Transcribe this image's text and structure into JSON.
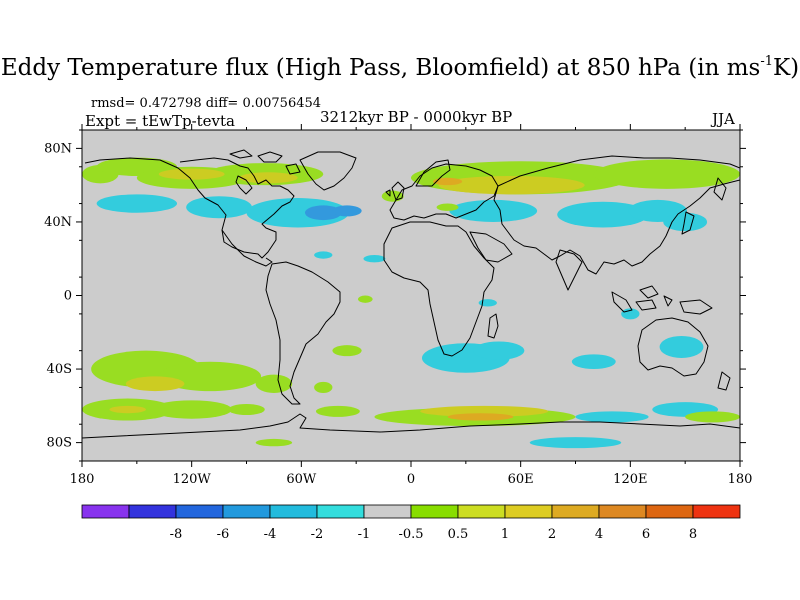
{
  "header": {
    "title_main": "Eddy Temperature flux (High Pass, Bloomfield) at 850 hPa (in ms",
    "title_sup": "-1",
    "title_end": "K)",
    "stats": "rmsd= 0.472798 diff= 0.00756454",
    "experiment": "Expt = tEwTp-tevta",
    "period": "3212kyr BP - 0000kyr BP",
    "season": "JJA"
  },
  "map": {
    "projection": "cylindrical-equidistant",
    "lon_range": [
      -180,
      180
    ],
    "lat_range": [
      -90,
      90
    ],
    "lat_ticks": [
      {
        "value": 80,
        "label": "80N"
      },
      {
        "value": 40,
        "label": "40N"
      },
      {
        "value": 0,
        "label": "0"
      },
      {
        "value": -40,
        "label": "40S"
      },
      {
        "value": -80,
        "label": "80S"
      }
    ],
    "lon_ticks": [
      {
        "value": -180,
        "label": "180"
      },
      {
        "value": -120,
        "label": "120W"
      },
      {
        "value": -60,
        "label": "60W"
      },
      {
        "value": 0,
        "label": "0"
      },
      {
        "value": 60,
        "label": "60E"
      },
      {
        "value": 120,
        "label": "120E"
      },
      {
        "value": 180,
        "label": "180"
      }
    ],
    "background_color": "#cccccc",
    "coastline_color": "#000000",
    "anomalies": [
      {
        "lon": -170,
        "lat": 66,
        "rx": 10,
        "ry": 5,
        "color": "#99dd22"
      },
      {
        "lon": -150,
        "lat": 70,
        "rx": 22,
        "ry": 5,
        "color": "#99dd22"
      },
      {
        "lon": -120,
        "lat": 64,
        "rx": 30,
        "ry": 6,
        "color": "#99dd22"
      },
      {
        "lon": -80,
        "lat": 66,
        "rx": 32,
        "ry": 6,
        "color": "#99dd22"
      },
      {
        "lon": -120,
        "lat": 66,
        "rx": 18,
        "ry": 3,
        "color": "#cccc22"
      },
      {
        "lon": -78,
        "lat": 64,
        "rx": 16,
        "ry": 3,
        "color": "#cccc22"
      },
      {
        "lon": -150,
        "lat": 50,
        "rx": 22,
        "ry": 5,
        "color": "#33ccdd"
      },
      {
        "lon": -105,
        "lat": 48,
        "rx": 18,
        "ry": 6,
        "color": "#33ccdd"
      },
      {
        "lon": -62,
        "lat": 45,
        "rx": 28,
        "ry": 8,
        "color": "#33ccdd"
      },
      {
        "lon": -48,
        "lat": 45,
        "rx": 10,
        "ry": 4,
        "color": "#3399dd"
      },
      {
        "lon": -35,
        "lat": 46,
        "rx": 8,
        "ry": 3,
        "color": "#3399dd"
      },
      {
        "lon": -10,
        "lat": 54,
        "rx": 6,
        "ry": 3,
        "color": "#99dd22"
      },
      {
        "lon": -48,
        "lat": 22,
        "rx": 5,
        "ry": 2,
        "color": "#33ccdd"
      },
      {
        "lon": -20,
        "lat": 20,
        "rx": 6,
        "ry": 2,
        "color": "#33ccdd"
      },
      {
        "lon": 60,
        "lat": 64,
        "rx": 60,
        "ry": 9,
        "color": "#99dd22"
      },
      {
        "lon": 140,
        "lat": 66,
        "rx": 40,
        "ry": 8,
        "color": "#99dd22"
      },
      {
        "lon": 55,
        "lat": 60,
        "rx": 40,
        "ry": 5,
        "color": "#cccc22"
      },
      {
        "lon": 20,
        "lat": 62,
        "rx": 8,
        "ry": 2,
        "color": "#ddaa22"
      },
      {
        "lon": 45,
        "lat": 46,
        "rx": 24,
        "ry": 6,
        "color": "#33ccdd"
      },
      {
        "lon": 105,
        "lat": 44,
        "rx": 25,
        "ry": 7,
        "color": "#33ccdd"
      },
      {
        "lon": 135,
        "lat": 46,
        "rx": 16,
        "ry": 6,
        "color": "#33ccdd"
      },
      {
        "lon": 150,
        "lat": 40,
        "rx": 12,
        "ry": 5,
        "color": "#33ccdd"
      },
      {
        "lon": 20,
        "lat": 48,
        "rx": 6,
        "ry": 2,
        "color": "#99dd22"
      },
      {
        "lon": -25,
        "lat": -2,
        "rx": 4,
        "ry": 2,
        "color": "#99dd22"
      },
      {
        "lon": 42,
        "lat": -4,
        "rx": 5,
        "ry": 2,
        "color": "#33ccdd"
      },
      {
        "lon": 120,
        "lat": -10,
        "rx": 5,
        "ry": 3,
        "color": "#33ccdd"
      },
      {
        "lon": -145,
        "lat": -40,
        "rx": 30,
        "ry": 10,
        "color": "#99dd22"
      },
      {
        "lon": -110,
        "lat": -44,
        "rx": 28,
        "ry": 8,
        "color": "#99dd22"
      },
      {
        "lon": -140,
        "lat": -48,
        "rx": 16,
        "ry": 4,
        "color": "#cccc22"
      },
      {
        "lon": -75,
        "lat": -48,
        "rx": 10,
        "ry": 5,
        "color": "#99dd22"
      },
      {
        "lon": -155,
        "lat": -62,
        "rx": 25,
        "ry": 6,
        "color": "#99dd22"
      },
      {
        "lon": -120,
        "lat": -62,
        "rx": 22,
        "ry": 5,
        "color": "#99dd22"
      },
      {
        "lon": -155,
        "lat": -62,
        "rx": 10,
        "ry": 2,
        "color": "#cccc22"
      },
      {
        "lon": -90,
        "lat": -62,
        "rx": 10,
        "ry": 3,
        "color": "#99dd22"
      },
      {
        "lon": -48,
        "lat": -50,
        "rx": 5,
        "ry": 3,
        "color": "#99dd22"
      },
      {
        "lon": -35,
        "lat": -30,
        "rx": 8,
        "ry": 3,
        "color": "#99dd22"
      },
      {
        "lon": 30,
        "lat": -34,
        "rx": 24,
        "ry": 8,
        "color": "#33ccdd"
      },
      {
        "lon": 48,
        "lat": -30,
        "rx": 14,
        "ry": 5,
        "color": "#33ccdd"
      },
      {
        "lon": 100,
        "lat": -36,
        "rx": 12,
        "ry": 4,
        "color": "#33ccdd"
      },
      {
        "lon": 148,
        "lat": -28,
        "rx": 12,
        "ry": 6,
        "color": "#33ccdd"
      },
      {
        "lon": 35,
        "lat": -66,
        "rx": 55,
        "ry": 5,
        "color": "#99dd22"
      },
      {
        "lon": 40,
        "lat": -63,
        "rx": 35,
        "ry": 3,
        "color": "#cccc22"
      },
      {
        "lon": 38,
        "lat": -66,
        "rx": 18,
        "ry": 2,
        "color": "#ddaa22"
      },
      {
        "lon": -40,
        "lat": -63,
        "rx": 12,
        "ry": 3,
        "color": "#99dd22"
      },
      {
        "lon": 110,
        "lat": -66,
        "rx": 20,
        "ry": 3,
        "color": "#33ccdd"
      },
      {
        "lon": 150,
        "lat": -62,
        "rx": 18,
        "ry": 4,
        "color": "#33ccdd"
      },
      {
        "lon": 165,
        "lat": -66,
        "rx": 15,
        "ry": 3,
        "color": "#99dd22"
      },
      {
        "lon": 90,
        "lat": -80,
        "rx": 25,
        "ry": 3,
        "color": "#33ccdd"
      },
      {
        "lon": -75,
        "lat": -80,
        "rx": 10,
        "ry": 2,
        "color": "#99dd22"
      }
    ]
  },
  "colorbar": {
    "colors": [
      "#8833ee",
      "#3333dd",
      "#2266dd",
      "#2299dd",
      "#22bbdd",
      "#33dddd",
      "#cccccc",
      "#88dd00",
      "#ccdd22",
      "#ddcc22",
      "#ddaa22",
      "#dd8822",
      "#dd6611",
      "#ee3311"
    ],
    "labels": [
      "-8",
      "-6",
      "-4",
      "-2",
      "-1",
      "-0.5",
      "0.5",
      "1",
      "2",
      "4",
      "6",
      "8"
    ]
  }
}
